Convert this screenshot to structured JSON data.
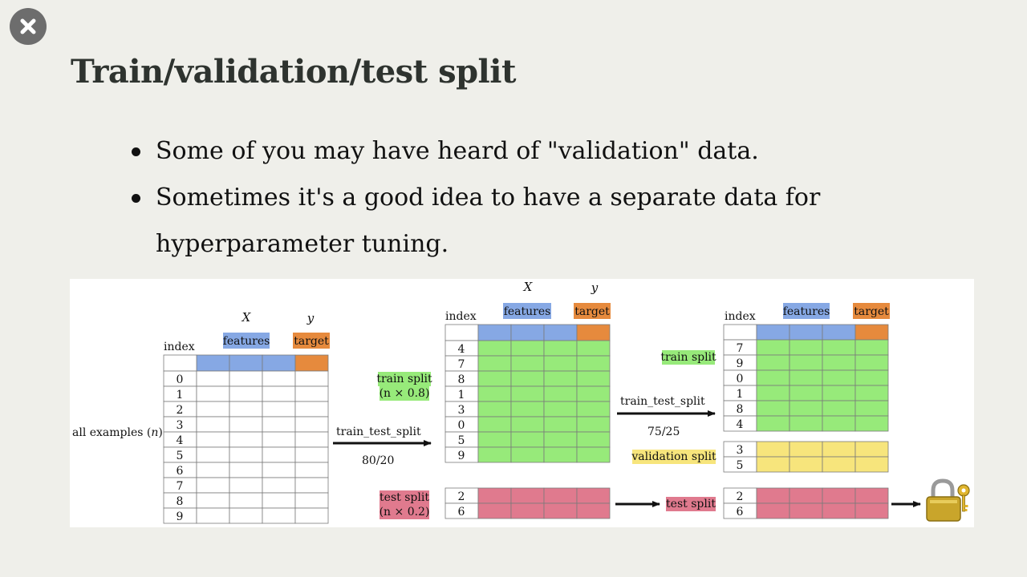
{
  "close_button": {
    "icon": "close-icon"
  },
  "slide": {
    "title": "Train/validation/test split",
    "bullets": [
      "Some of you may have heard of \"validation\" data.",
      "Sometimes it's a good idea to have a separate data for hyperparameter tuning."
    ]
  },
  "diagram": {
    "colors": {
      "features": "#86a8e4",
      "target": "#e68a3d",
      "train": "#97ea7a",
      "validation": "#f7e57c",
      "test": "#e07a8e"
    },
    "all_examples": {
      "label_prefix": "all examples (",
      "label_var": "n",
      "label_suffix": ")",
      "x_label": "X",
      "y_label": "y",
      "features_label": "features",
      "target_label": "target",
      "index_label": "index",
      "indices": [
        "0",
        "1",
        "2",
        "3",
        "4",
        "5",
        "6",
        "7",
        "8",
        "9"
      ]
    },
    "first_split": {
      "function_label": "train_test_split",
      "ratio_label": "80/20",
      "train_label": "train split",
      "train_fraction": "(n × 0.8)",
      "test_label": "test split",
      "test_fraction": "(n × 0.2)",
      "x_label": "X",
      "y_label": "y",
      "features_label": "features",
      "target_label": "target",
      "index_label": "index",
      "train_indices": [
        "4",
        "7",
        "8",
        "1",
        "3",
        "0",
        "5",
        "9"
      ],
      "test_indices": [
        "2",
        "6"
      ]
    },
    "second_split": {
      "function_label": "train_test_split",
      "ratio_label": "75/25",
      "train_label": "train split",
      "validation_label": "validation split",
      "test_label": "test split",
      "features_label": "features",
      "target_label": "target",
      "index_label": "index",
      "train_indices": [
        "7",
        "9",
        "0",
        "1",
        "8",
        "4"
      ],
      "validation_indices": [
        "3",
        "5"
      ],
      "test_indices": [
        "2",
        "6"
      ]
    },
    "lock_icon": "lock-icon"
  }
}
